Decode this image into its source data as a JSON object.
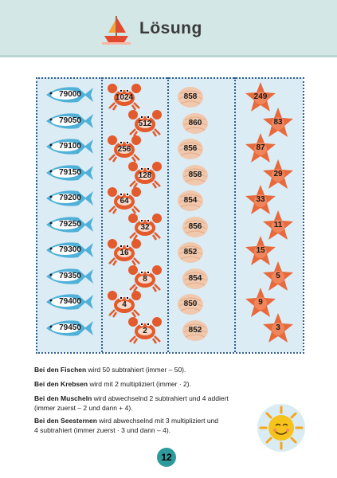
{
  "header": {
    "title": "Lösung",
    "icon": "sailboat-icon",
    "bg": "#d2e7e6"
  },
  "columns": {
    "fish": [
      "79000",
      "79050",
      "79100",
      "79150",
      "79200",
      "79250",
      "79300",
      "79350",
      "79400",
      "79450"
    ],
    "crabs": [
      "1024",
      "512",
      "256",
      "128",
      "64",
      "32",
      "16",
      "8",
      "4",
      "2"
    ],
    "shells": [
      "858",
      "860",
      "856",
      "858",
      "854",
      "856",
      "852",
      "854",
      "850",
      "852"
    ],
    "stars": [
      "249",
      "83",
      "87",
      "29",
      "33",
      "11",
      "15",
      "5",
      "9",
      "3"
    ]
  },
  "explanations": [
    {
      "bold": "Bei den Fischen",
      "text": " wird 50 subtrahiert (immer – 50)."
    },
    {
      "bold": "Bei den Krebsen",
      "text": " wird mit 2 multipliziert (immer · 2)."
    },
    {
      "bold": "Bei den Muscheln",
      "text": " wird abwechselnd 2 subtrahiert und 4 addiert",
      "line2": "(immer zuerst – 2 und dann + 4)."
    },
    {
      "bold": "Bei den Seesternen",
      "text": " wird abwechselnd mit 3 multipliziert und",
      "line2": "4 subtrahiert (immer zuerst · 3 und dann – 4)."
    }
  ],
  "page_number": "12",
  "colors": {
    "fish": "#4fb0d8",
    "crab": "#e35a2c",
    "shell": "#f0c8ad",
    "star": "#e86a3c",
    "badge": "#2e9a9c",
    "sun": "#f6c21c"
  }
}
